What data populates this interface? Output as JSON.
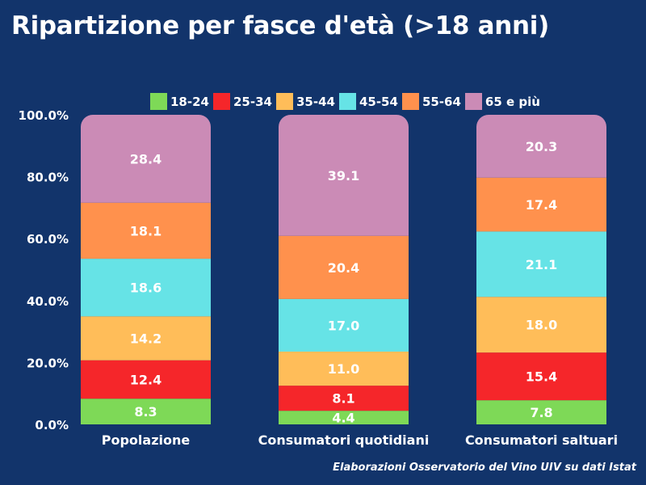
{
  "title": "Ripartizione per fasce d'età (>18 anni)",
  "note": "Elaborazioni Osservatorio del Vino UIV su dati Istat",
  "chart_data": {
    "type": "bar",
    "stacked": true,
    "categories": [
      "Popolazione",
      "Consumatori quotidiani",
      "Consumatori saltuari"
    ],
    "series": [
      {
        "name": "18-24",
        "color": "#7ed957",
        "values": [
          8.3,
          4.4,
          7.8
        ]
      },
      {
        "name": "25-34",
        "color": "#f5262a",
        "values": [
          12.4,
          8.1,
          15.4
        ]
      },
      {
        "name": "35-44",
        "color": "#ffbd59",
        "values": [
          14.2,
          11.0,
          18.0
        ]
      },
      {
        "name": "45-54",
        "color": "#66e3e6",
        "values": [
          18.6,
          17.0,
          21.1
        ]
      },
      {
        "name": "55-64",
        "color": "#ff914d",
        "values": [
          18.1,
          20.4,
          17.4
        ]
      },
      {
        "name": "65 e più",
        "color": "#cb8bb6",
        "values": [
          28.4,
          39.1,
          20.3
        ]
      }
    ],
    "yticks": [
      "0.0%",
      "20.0%",
      "40.0%",
      "60.0%",
      "80.0%",
      "100.0%"
    ],
    "ylim": [
      0,
      100
    ],
    "legend": "top",
    "grid": false
  }
}
